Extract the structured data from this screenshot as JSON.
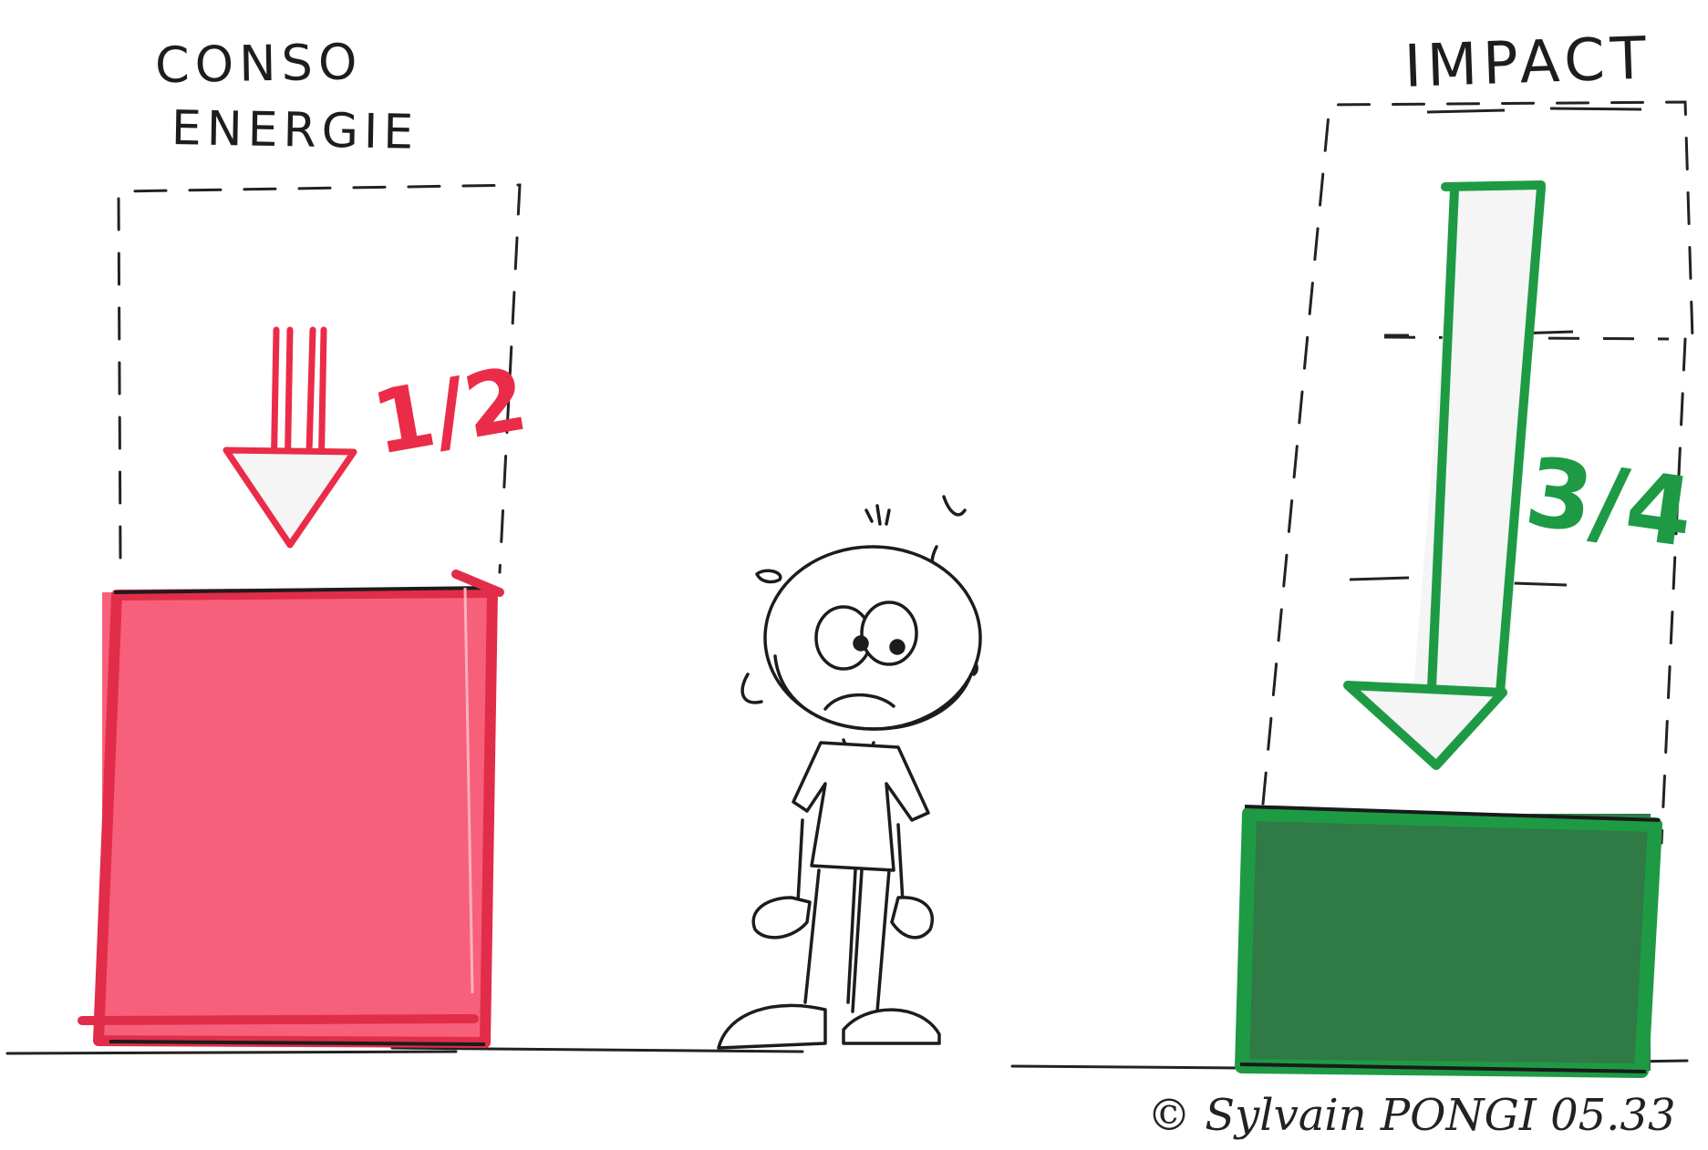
{
  "left_panel": {
    "title_line1": "CONSO",
    "title_line2": "ENERGIE",
    "fraction": "1/2",
    "color": "#f0485e",
    "fill_color": "#f7607a"
  },
  "right_panel": {
    "title": "IMPACT",
    "fraction": "3/4",
    "color": "#1f9a45",
    "fill_color": "#2f7a45"
  },
  "signature": "© Sylvain PONGI 05.33",
  "icons": {
    "left_arrow": "down-arrow-icon",
    "right_arrow": "down-arrow-icon",
    "character": "stick-figure-character"
  }
}
